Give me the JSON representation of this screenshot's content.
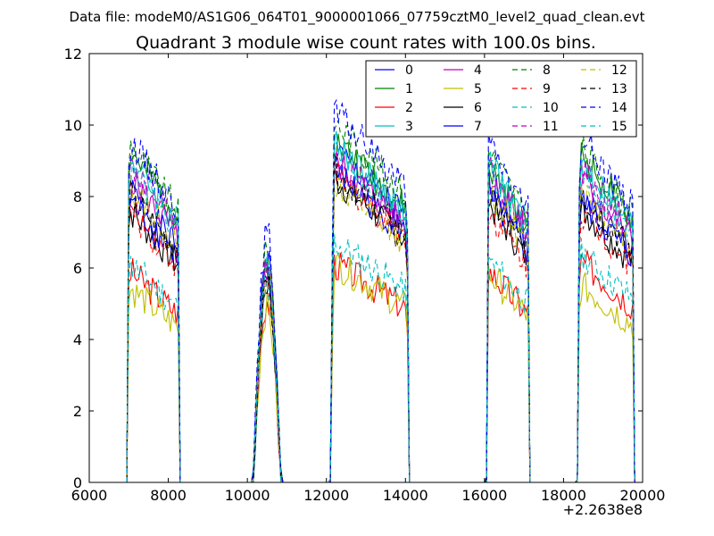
{
  "figure": {
    "suptitle": "Data file: modeM0/AS1G06_064T01_9000001066_07759cztM0_level2_quad_clean.evt",
    "title": "Quadrant 3 module wise count rates with 100.0s bins.",
    "x_offset_label": "+2.2638e8"
  },
  "chart_data": {
    "type": "line",
    "title": "Quadrant 3 module wise count rates with 100.0s bins.",
    "xlabel": "",
    "ylabel": "",
    "x_offset": 226380000,
    "xlim": [
      6000,
      20000
    ],
    "ylim": [
      0,
      12
    ],
    "xticks": [
      6000,
      8000,
      10000,
      12000,
      14000,
      16000,
      18000,
      20000
    ],
    "yticks": [
      0,
      2,
      4,
      6,
      8,
      10,
      12
    ],
    "grid": false,
    "legend": {
      "placement": "top-right",
      "columns": 4
    },
    "series": [
      {
        "name": "0",
        "color": "#0000ff",
        "dash": "solid",
        "levels": [
          8.3,
          6.3,
          9.4,
          8.6,
          8.2
        ]
      },
      {
        "name": "1",
        "color": "#008000",
        "dash": "solid",
        "levels": [
          9.4,
          6.1,
          9.7,
          8.9,
          9.3
        ]
      },
      {
        "name": "2",
        "color": "#ff0000",
        "dash": "solid",
        "levels": [
          6.0,
          5.1,
          6.2,
          6.0,
          6.3
        ]
      },
      {
        "name": "3",
        "color": "#00bfbf",
        "dash": "solid",
        "levels": [
          9.2,
          6.2,
          9.6,
          9.1,
          9.1
        ]
      },
      {
        "name": "4",
        "color": "#bf00bf",
        "dash": "solid",
        "levels": [
          8.7,
          5.9,
          9.1,
          8.7,
          8.6
        ]
      },
      {
        "name": "5",
        "color": "#bfbf00",
        "dash": "solid",
        "levels": [
          5.5,
          4.9,
          6.2,
          5.9,
          5.6
        ]
      },
      {
        "name": "6",
        "color": "#000000",
        "dash": "solid",
        "levels": [
          7.7,
          5.6,
          8.6,
          7.9,
          7.8
        ]
      },
      {
        "name": "7",
        "color": "#0000ff",
        "dash": "solid",
        "levels": [
          8.0,
          5.8,
          8.8,
          8.1,
          8.0
        ]
      },
      {
        "name": "8",
        "color": "#008000",
        "dash": "dashed",
        "levels": [
          9.6,
          6.5,
          10.2,
          9.4,
          9.5
        ]
      },
      {
        "name": "9",
        "color": "#ff0000",
        "dash": "dashed",
        "levels": [
          7.7,
          5.6,
          8.7,
          7.7,
          7.7
        ]
      },
      {
        "name": "10",
        "color": "#00bfbf",
        "dash": "dashed",
        "levels": [
          6.2,
          5.3,
          6.8,
          6.3,
          6.5
        ]
      },
      {
        "name": "11",
        "color": "#bf00bf",
        "dash": "dashed",
        "levels": [
          9.0,
          6.0,
          9.2,
          9.0,
          8.9
        ]
      },
      {
        "name": "12",
        "color": "#bfbf00",
        "dash": "dashed",
        "levels": [
          8.4,
          5.9,
          8.5,
          8.3,
          8.4
        ]
      },
      {
        "name": "13",
        "color": "#000000",
        "dash": "dashed",
        "levels": [
          8.2,
          5.7,
          8.8,
          8.1,
          8.2
        ]
      },
      {
        "name": "14",
        "color": "#0000ff",
        "dash": "dashed",
        "levels": [
          9.7,
          7.0,
          10.5,
          9.6,
          9.8
        ]
      },
      {
        "name": "15",
        "color": "#00bfbf",
        "dash": "dashed",
        "levels": [
          8.9,
          6.2,
          9.4,
          8.9,
          8.8
        ]
      }
    ],
    "segments": [
      {
        "start": 6950,
        "end": 8300
      },
      {
        "start": 10150,
        "end": 10850
      },
      {
        "start": 12100,
        "end": 14100
      },
      {
        "start": 16050,
        "end": 17150
      },
      {
        "start": 18350,
        "end": 19800
      }
    ],
    "gaps_zero": true
  }
}
